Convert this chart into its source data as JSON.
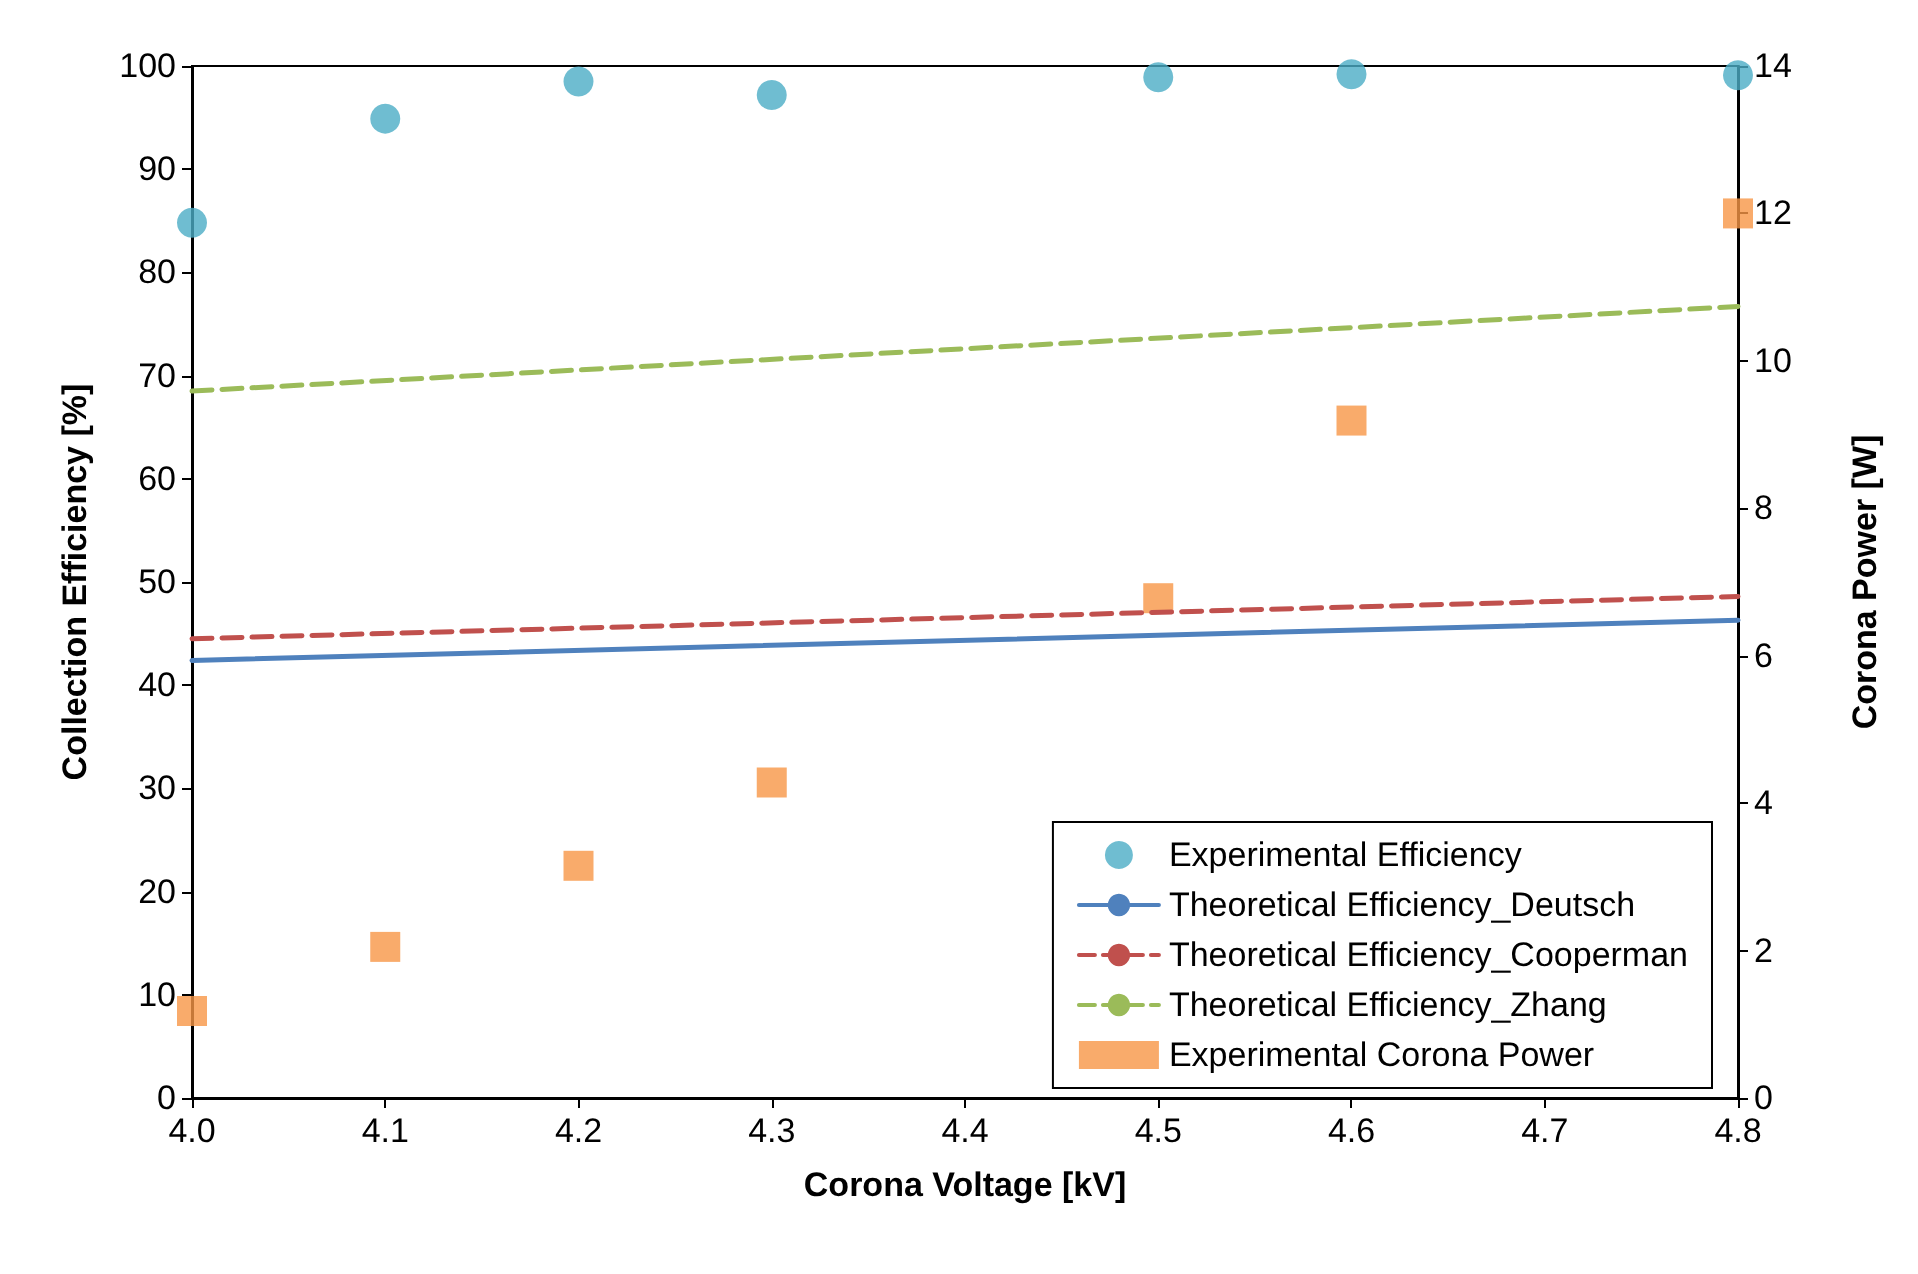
{
  "chart_data": {
    "type": "scatter",
    "xlabel": "Corona Voltage [kV]",
    "ylabel": "Collection Efficiency [%]",
    "y2label": "Corona Power [W]",
    "xlim": [
      4.0,
      4.8
    ],
    "xticks": [
      {
        "value": 4.0,
        "label": "4.0"
      },
      {
        "value": 4.1,
        "label": "4.1"
      },
      {
        "value": 4.2,
        "label": "4.2"
      },
      {
        "value": 4.3,
        "label": "4.3"
      },
      {
        "value": 4.4,
        "label": "4.4"
      },
      {
        "value": 4.5,
        "label": "4.5"
      },
      {
        "value": 4.6,
        "label": "4.6"
      },
      {
        "value": 4.7,
        "label": "4.7"
      },
      {
        "value": 4.8,
        "label": "4.8"
      }
    ],
    "ylim": [
      0,
      100
    ],
    "yticks": [
      0,
      10,
      20,
      30,
      40,
      50,
      60,
      70,
      80,
      90,
      100
    ],
    "y2lim": [
      0,
      14
    ],
    "y2ticks": [
      0,
      2,
      4,
      6,
      8,
      10,
      12,
      14
    ],
    "grid": false,
    "legend": "bottom right",
    "series": [
      {
        "name": "Experimental Efficiency",
        "marker": "circle",
        "color": "#4bacc6",
        "x": [
          4.0,
          4.1,
          4.2,
          4.3,
          4.5,
          4.6,
          4.8
        ],
        "values": [
          84.8,
          94.9,
          98.5,
          97.2,
          98.9,
          99.2,
          99.1
        ]
      },
      {
        "name": "Theoretical Efficiency_Deutsch",
        "type": "line",
        "marker": "none",
        "line_style": "solid",
        "color": "#4f81bd",
        "x": [
          4.0,
          4.8
        ],
        "values": [
          42.4,
          46.3
        ]
      },
      {
        "name": "Theoretical Efficiency_Cooperman",
        "type": "line",
        "marker": "none",
        "line_style": "dashed",
        "color": "#c0504d",
        "x": [
          4.0,
          4.8
        ],
        "values": [
          44.5,
          48.6
        ]
      },
      {
        "name": "Theoretical Efficiency_Zhang",
        "type": "line",
        "marker": "none",
        "line_style": "dashed",
        "color": "#9bbb59",
        "x": [
          4.0,
          4.8
        ],
        "values": [
          68.5,
          76.7
        ]
      },
      {
        "name": "Experimental Corona Power",
        "marker": "square",
        "axis": "y2",
        "color": "#f79646",
        "x": [
          4.0,
          4.1,
          4.2,
          4.3,
          4.5,
          4.6,
          4.8
        ],
        "values": [
          1.18,
          2.05,
          3.15,
          4.28,
          6.78,
          9.19,
          12.0
        ]
      }
    ]
  }
}
